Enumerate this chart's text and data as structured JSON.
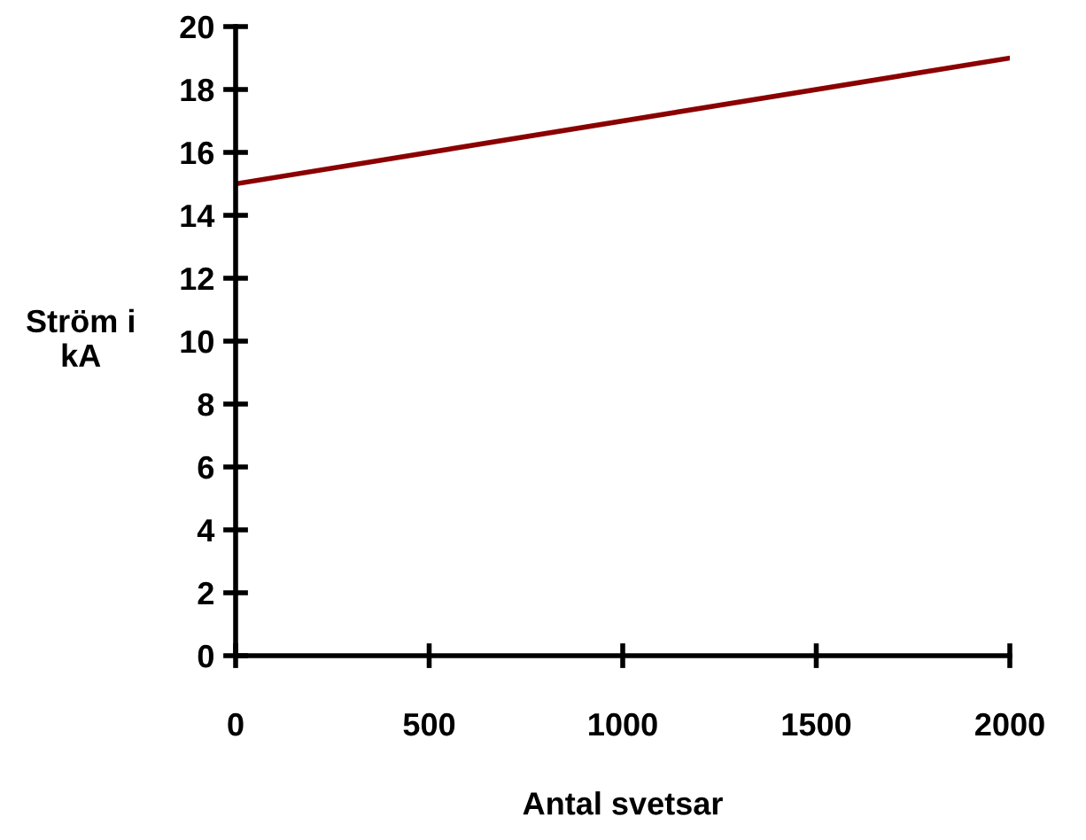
{
  "chart_data": {
    "type": "line",
    "xlabel": "Antal svetsar",
    "ylabel": "Ström i\nkA",
    "x": [
      0,
      2000
    ],
    "series": [
      {
        "color": "#8b0000",
        "values": [
          15,
          19
        ]
      }
    ],
    "xlim": [
      0,
      2000
    ],
    "xticks": [
      0,
      500,
      1000,
      1500,
      2000
    ],
    "ylim": [
      0,
      20
    ],
    "yticks": [
      0,
      2,
      4,
      6,
      8,
      10,
      12,
      14,
      16,
      18,
      20
    ],
    "grid": false,
    "legend": false,
    "marker": "none",
    "line_style": "solid"
  }
}
